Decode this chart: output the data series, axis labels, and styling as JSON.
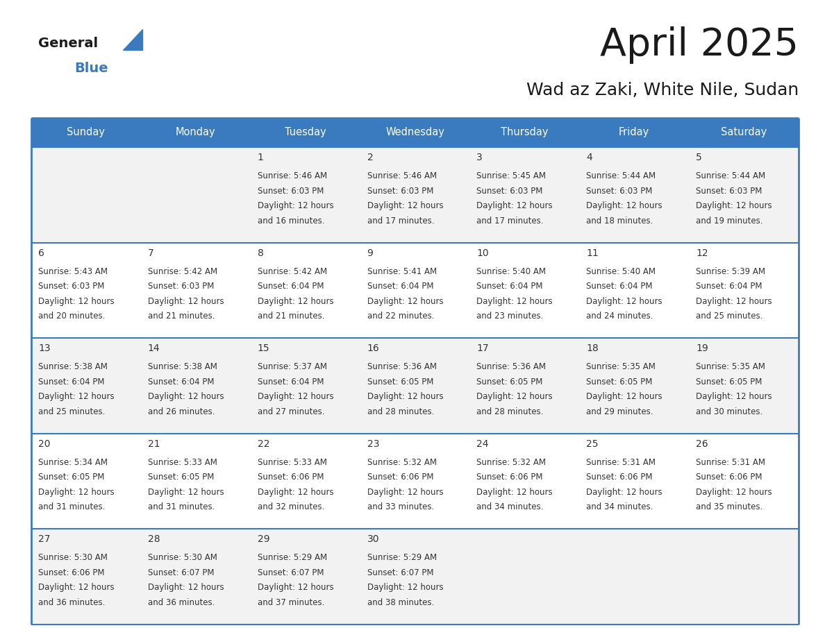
{
  "title": "April 2025",
  "subtitle": "Wad az Zaki, White Nile, Sudan",
  "header_color": "#3a7bbf",
  "header_text_color": "#ffffff",
  "bg_color": "#ffffff",
  "cell_bg_even": "#f2f2f2",
  "cell_bg_odd": "#ffffff",
  "day_names": [
    "Sunday",
    "Monday",
    "Tuesday",
    "Wednesday",
    "Thursday",
    "Friday",
    "Saturday"
  ],
  "separator_color": "#3a7bbf",
  "text_color": "#333333",
  "days": [
    {
      "day": 1,
      "col": 2,
      "row": 0,
      "sunrise": "5:46 AM",
      "sunset": "6:03 PM",
      "daylight_min": "16"
    },
    {
      "day": 2,
      "col": 3,
      "row": 0,
      "sunrise": "5:46 AM",
      "sunset": "6:03 PM",
      "daylight_min": "17"
    },
    {
      "day": 3,
      "col": 4,
      "row": 0,
      "sunrise": "5:45 AM",
      "sunset": "6:03 PM",
      "daylight_min": "17"
    },
    {
      "day": 4,
      "col": 5,
      "row": 0,
      "sunrise": "5:44 AM",
      "sunset": "6:03 PM",
      "daylight_min": "18"
    },
    {
      "day": 5,
      "col": 6,
      "row": 0,
      "sunrise": "5:44 AM",
      "sunset": "6:03 PM",
      "daylight_min": "19"
    },
    {
      "day": 6,
      "col": 0,
      "row": 1,
      "sunrise": "5:43 AM",
      "sunset": "6:03 PM",
      "daylight_min": "20"
    },
    {
      "day": 7,
      "col": 1,
      "row": 1,
      "sunrise": "5:42 AM",
      "sunset": "6:03 PM",
      "daylight_min": "21"
    },
    {
      "day": 8,
      "col": 2,
      "row": 1,
      "sunrise": "5:42 AM",
      "sunset": "6:04 PM",
      "daylight_min": "21"
    },
    {
      "day": 9,
      "col": 3,
      "row": 1,
      "sunrise": "5:41 AM",
      "sunset": "6:04 PM",
      "daylight_min": "22"
    },
    {
      "day": 10,
      "col": 4,
      "row": 1,
      "sunrise": "5:40 AM",
      "sunset": "6:04 PM",
      "daylight_min": "23"
    },
    {
      "day": 11,
      "col": 5,
      "row": 1,
      "sunrise": "5:40 AM",
      "sunset": "6:04 PM",
      "daylight_min": "24"
    },
    {
      "day": 12,
      "col": 6,
      "row": 1,
      "sunrise": "5:39 AM",
      "sunset": "6:04 PM",
      "daylight_min": "25"
    },
    {
      "day": 13,
      "col": 0,
      "row": 2,
      "sunrise": "5:38 AM",
      "sunset": "6:04 PM",
      "daylight_min": "25"
    },
    {
      "day": 14,
      "col": 1,
      "row": 2,
      "sunrise": "5:38 AM",
      "sunset": "6:04 PM",
      "daylight_min": "26"
    },
    {
      "day": 15,
      "col": 2,
      "row": 2,
      "sunrise": "5:37 AM",
      "sunset": "6:04 PM",
      "daylight_min": "27"
    },
    {
      "day": 16,
      "col": 3,
      "row": 2,
      "sunrise": "5:36 AM",
      "sunset": "6:05 PM",
      "daylight_min": "28"
    },
    {
      "day": 17,
      "col": 4,
      "row": 2,
      "sunrise": "5:36 AM",
      "sunset": "6:05 PM",
      "daylight_min": "28"
    },
    {
      "day": 18,
      "col": 5,
      "row": 2,
      "sunrise": "5:35 AM",
      "sunset": "6:05 PM",
      "daylight_min": "29"
    },
    {
      "day": 19,
      "col": 6,
      "row": 2,
      "sunrise": "5:35 AM",
      "sunset": "6:05 PM",
      "daylight_min": "30"
    },
    {
      "day": 20,
      "col": 0,
      "row": 3,
      "sunrise": "5:34 AM",
      "sunset": "6:05 PM",
      "daylight_min": "31"
    },
    {
      "day": 21,
      "col": 1,
      "row": 3,
      "sunrise": "5:33 AM",
      "sunset": "6:05 PM",
      "daylight_min": "31"
    },
    {
      "day": 22,
      "col": 2,
      "row": 3,
      "sunrise": "5:33 AM",
      "sunset": "6:06 PM",
      "daylight_min": "32"
    },
    {
      "day": 23,
      "col": 3,
      "row": 3,
      "sunrise": "5:32 AM",
      "sunset": "6:06 PM",
      "daylight_min": "33"
    },
    {
      "day": 24,
      "col": 4,
      "row": 3,
      "sunrise": "5:32 AM",
      "sunset": "6:06 PM",
      "daylight_min": "34"
    },
    {
      "day": 25,
      "col": 5,
      "row": 3,
      "sunrise": "5:31 AM",
      "sunset": "6:06 PM",
      "daylight_min": "34"
    },
    {
      "day": 26,
      "col": 6,
      "row": 3,
      "sunrise": "5:31 AM",
      "sunset": "6:06 PM",
      "daylight_min": "35"
    },
    {
      "day": 27,
      "col": 0,
      "row": 4,
      "sunrise": "5:30 AM",
      "sunset": "6:06 PM",
      "daylight_min": "36"
    },
    {
      "day": 28,
      "col": 1,
      "row": 4,
      "sunrise": "5:30 AM",
      "sunset": "6:07 PM",
      "daylight_min": "36"
    },
    {
      "day": 29,
      "col": 2,
      "row": 4,
      "sunrise": "5:29 AM",
      "sunset": "6:07 PM",
      "daylight_min": "37"
    },
    {
      "day": 30,
      "col": 3,
      "row": 4,
      "sunrise": "5:29 AM",
      "sunset": "6:07 PM",
      "daylight_min": "38"
    }
  ]
}
